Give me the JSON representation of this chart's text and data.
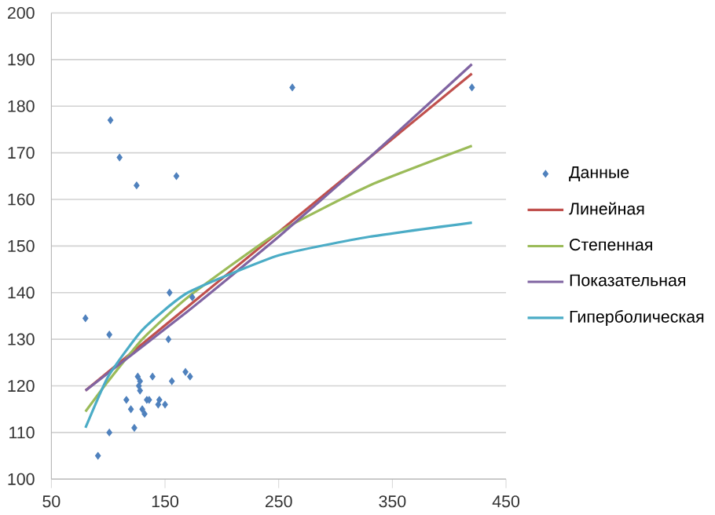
{
  "chart_data": {
    "type": "scatter",
    "xlim": [
      50,
      450
    ],
    "ylim": [
      100,
      200
    ],
    "xticks": [
      50,
      150,
      250,
      350,
      450
    ],
    "yticks": [
      100,
      110,
      120,
      130,
      140,
      150,
      160,
      170,
      180,
      190,
      200
    ],
    "grid": "y",
    "legend": "right",
    "series": [
      {
        "name": "Данные",
        "marker": "diamond",
        "color": "#4f81bd",
        "x": [
          80,
          91,
          101,
          101,
          102,
          110,
          116,
          120,
          123,
          125,
          126,
          127,
          128,
          128,
          130,
          132,
          134,
          136,
          139,
          144,
          145,
          150,
          153,
          154,
          156,
          160,
          168,
          172,
          174,
          262,
          420
        ],
        "values": [
          134.5,
          105,
          110,
          131,
          177,
          169,
          117,
          115,
          111,
          163,
          122,
          120,
          119,
          121,
          115,
          114,
          117,
          117,
          122,
          116,
          117,
          116,
          130,
          140,
          121,
          165,
          123,
          122,
          139,
          184,
          184
        ]
      },
      {
        "name": "Линейная",
        "type": "line",
        "color": "#c0504d",
        "x": [
          80,
          420
        ],
        "values": [
          119,
          187
        ]
      },
      {
        "name": "Степенная",
        "type": "line",
        "color": "#9bbb59",
        "x": [
          80,
          100,
          130,
          170,
          250,
          330,
          420
        ],
        "values": [
          114.5,
          121,
          130,
          139,
          153,
          163,
          171.5
        ]
      },
      {
        "name": "Показательная",
        "type": "line",
        "color": "#8064a2",
        "x": [
          80,
          170,
          250,
          330,
          420
        ],
        "values": [
          119,
          136,
          152,
          169,
          189
        ]
      },
      {
        "name": "Гиперболическая",
        "type": "line",
        "color": "#4bacc6",
        "x": [
          80,
          100,
          130,
          170,
          250,
          330,
          420
        ],
        "values": [
          111,
          122,
          132,
          140,
          148,
          152,
          155
        ]
      }
    ]
  }
}
